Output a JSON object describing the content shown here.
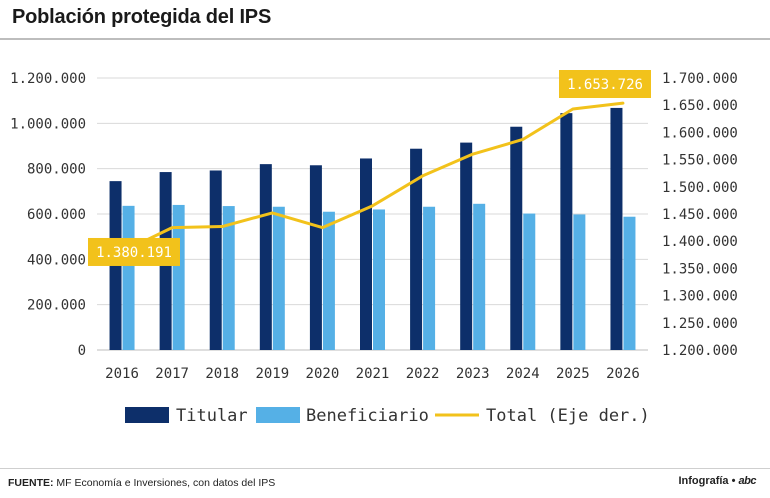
{
  "header": {
    "title": "Población protegida del IPS"
  },
  "chart_data": {
    "type": "bar",
    "categories": [
      "2016",
      "2017",
      "2018",
      "2019",
      "2020",
      "2021",
      "2022",
      "2023",
      "2024",
      "2025",
      "2026"
    ],
    "series": [
      {
        "name": "Titular",
        "axis": "left",
        "color": "#0d2f6a",
        "values": [
          745000,
          785000,
          792000,
          820000,
          815000,
          845000,
          888000,
          915000,
          985000,
          1045000,
          1068000
        ]
      },
      {
        "name": "Beneficiario",
        "axis": "left",
        "color": "#55b0e6",
        "values": [
          636000,
          640000,
          635000,
          632000,
          610000,
          620000,
          632000,
          645000,
          602000,
          598000,
          588000
        ]
      },
      {
        "name": "Total (Eje der.)",
        "type": "line",
        "axis": "right",
        "color": "#f2c21b",
        "values": [
          1380191,
          1425000,
          1427000,
          1452000,
          1425000,
          1465000,
          1520000,
          1560000,
          1587000,
          1643000,
          1653726
        ]
      }
    ],
    "y_left": {
      "min": 0,
      "max": 1200000,
      "ticks": [
        "0",
        "200.000",
        "400.000",
        "600.000",
        "800.000",
        "1.000.000",
        "1.200.000"
      ]
    },
    "y_right": {
      "min": 1200000,
      "max": 1700000,
      "ticks": [
        "1.200.000",
        "1.250.000",
        "1.300.000",
        "1.350.000",
        "1.400.000",
        "1.450.000",
        "1.500.000",
        "1.550.000",
        "1.600.000",
        "1.650.000",
        "1.700.000"
      ]
    },
    "annotations": [
      {
        "label": "1.380.191",
        "index": 0
      },
      {
        "label": "1.653.726",
        "index": 10
      }
    ],
    "legend": [
      "Titular",
      "Beneficiario",
      "Total (Eje der.)"
    ],
    "legend_position": "bottom",
    "grid": true
  },
  "footer": {
    "source_label": "FUENTE:",
    "source_text": "MF Economía e Inversiones, con datos del IPS",
    "credit": "Infografía •",
    "logo": "abc"
  }
}
